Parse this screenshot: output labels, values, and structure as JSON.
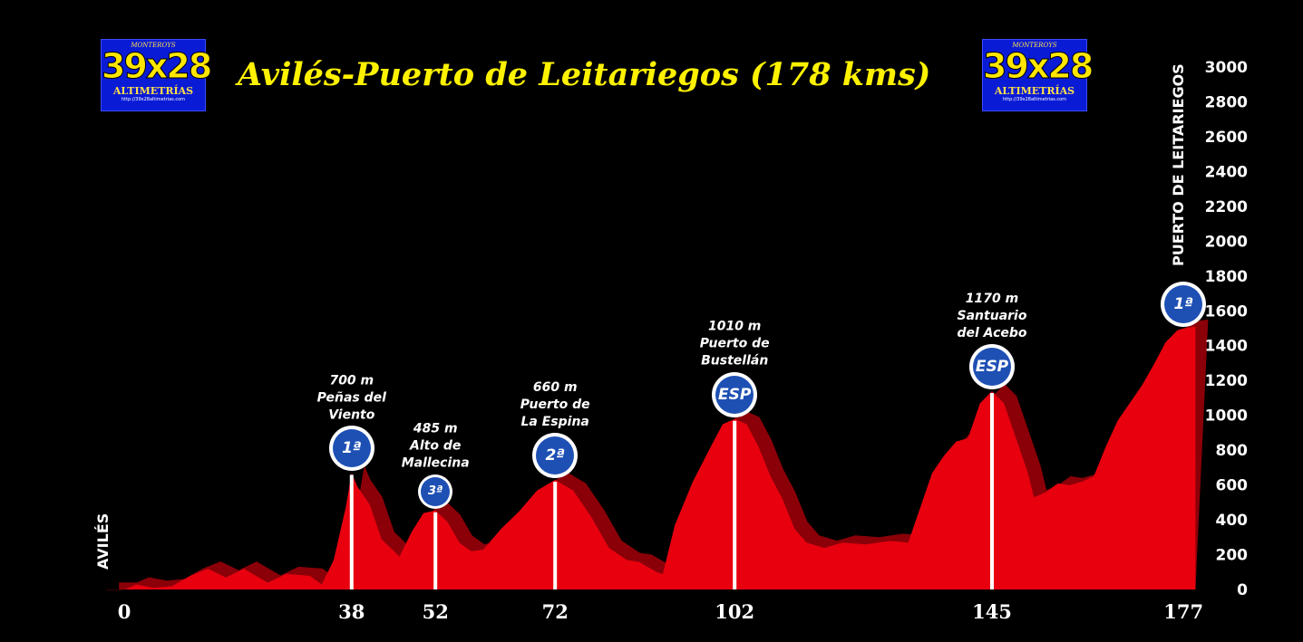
{
  "logo": {
    "top": "MONTEROYS",
    "big": "39x28",
    "mid": "ALTIMETRÍAS",
    "url": "http://39x28altimetrias.com"
  },
  "title": "Avilés-Puerto de Leitariegos (178 kms)",
  "start_label": "AVILÉS",
  "end_label": "PUERTO DE LEITARIEGOS",
  "colors": {
    "profile": "#e8000f",
    "shadow": "#8b0008",
    "title": "#fff200",
    "sign": "#1e50b4"
  },
  "chart_data": {
    "type": "area",
    "title": "Avilés-Puerto de Leitariegos (178 kms)",
    "xlabel": "",
    "ylabel": "",
    "xlim": [
      0,
      178
    ],
    "ylim": [
      0,
      3000
    ],
    "y_ticks": [
      0,
      200,
      400,
      600,
      800,
      1000,
      1200,
      1400,
      1600,
      1800,
      2000,
      2200,
      2400,
      2600,
      2800,
      3000
    ],
    "x_ticks": [
      0,
      38,
      52,
      72,
      102,
      145,
      177
    ],
    "profile": [
      [
        -3,
        30
      ],
      [
        0,
        30
      ],
      [
        2,
        60
      ],
      [
        5,
        40
      ],
      [
        8,
        50
      ],
      [
        11,
        110
      ],
      [
        14,
        150
      ],
      [
        17,
        100
      ],
      [
        20,
        150
      ],
      [
        24,
        70
      ],
      [
        27,
        120
      ],
      [
        31,
        110
      ],
      [
        33,
        60
      ],
      [
        35,
        200
      ],
      [
        37,
        500
      ],
      [
        38,
        700
      ],
      [
        39,
        620
      ],
      [
        41,
        520
      ],
      [
        43,
        320
      ],
      [
        46,
        220
      ],
      [
        48,
        360
      ],
      [
        50,
        470
      ],
      [
        52,
        485
      ],
      [
        54,
        420
      ],
      [
        56,
        300
      ],
      [
        58,
        250
      ],
      [
        60,
        260
      ],
      [
        63,
        380
      ],
      [
        66,
        480
      ],
      [
        69,
        600
      ],
      [
        72,
        660
      ],
      [
        75,
        600
      ],
      [
        78,
        450
      ],
      [
        81,
        270
      ],
      [
        84,
        200
      ],
      [
        86,
        190
      ],
      [
        88,
        150
      ],
      [
        89,
        130
      ],
      [
        90,
        120
      ],
      [
        92,
        400
      ],
      [
        95,
        650
      ],
      [
        98,
        850
      ],
      [
        100,
        980
      ],
      [
        102,
        1010
      ],
      [
        104,
        980
      ],
      [
        106,
        850
      ],
      [
        108,
        680
      ],
      [
        110,
        550
      ],
      [
        112,
        380
      ],
      [
        114,
        300
      ],
      [
        117,
        270
      ],
      [
        120,
        300
      ],
      [
        124,
        290
      ],
      [
        128,
        310
      ],
      [
        131,
        300
      ],
      [
        133,
        500
      ],
      [
        135,
        700
      ],
      [
        137,
        800
      ],
      [
        139,
        880
      ],
      [
        141,
        900
      ],
      [
        143,
        1100
      ],
      [
        145,
        1170
      ],
      [
        147,
        1100
      ],
      [
        149,
        900
      ],
      [
        151,
        700
      ],
      [
        152,
        560
      ],
      [
        154,
        590
      ],
      [
        156,
        640
      ],
      [
        158,
        630
      ],
      [
        160,
        650
      ],
      [
        162,
        680
      ],
      [
        164,
        850
      ],
      [
        166,
        1000
      ],
      [
        168,
        1100
      ],
      [
        170,
        1200
      ],
      [
        172,
        1320
      ],
      [
        174,
        1450
      ],
      [
        176,
        1520
      ],
      [
        177,
        1530
      ],
      [
        179,
        1540
      ]
    ],
    "climbs": [
      {
        "km": 38,
        "elev": 700,
        "cat": "1ª",
        "lines": [
          "700 m",
          "Peñas del",
          "Viento"
        ]
      },
      {
        "km": 52,
        "elev": 485,
        "cat": "3ª",
        "lines": [
          "485 m",
          "Alto de",
          "Mallecina"
        ]
      },
      {
        "km": 72,
        "elev": 660,
        "cat": "2ª",
        "lines": [
          "660 m",
          "Puerto de",
          "La Espina"
        ]
      },
      {
        "km": 102,
        "elev": 1010,
        "cat": "ESP",
        "lines": [
          "1010 m",
          "Puerto de",
          "Bustellán"
        ]
      },
      {
        "km": 145,
        "elev": 1170,
        "cat": "ESP",
        "lines": [
          "1170 m",
          "Santuario",
          "del Acebo"
        ]
      },
      {
        "km": 177,
        "elev": 1530,
        "cat": "1ª",
        "lines": []
      }
    ]
  }
}
